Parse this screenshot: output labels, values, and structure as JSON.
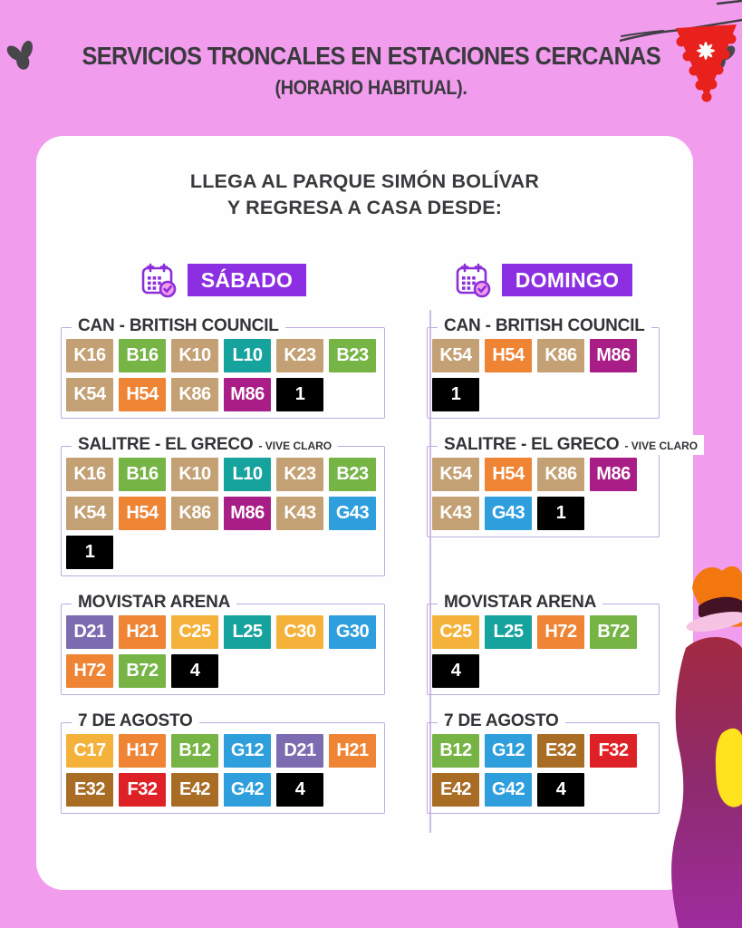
{
  "header": {
    "title": "SERVICIOS TRONCALES EN ESTACIONES CERCANAS",
    "subtitle": "(HORARIO HABITUAL)."
  },
  "card": {
    "heading_line1": "LLEGA AL PARQUE SIMÓN BOLÍVAR",
    "heading_line2": "Y REGRESA A CASA DESDE:"
  },
  "theme": {
    "bg": "#F29CEE",
    "card": "#FEFEFE",
    "ink": "#3A3A3E",
    "day": "#8C2EE1",
    "border": "#BEABE0",
    "divider": "#CDBCE8"
  },
  "route_colors": {
    "K": "#C3A175",
    "B": "#76B445",
    "L": "#16A39E",
    "H": "#EE8434",
    "M": "#A81E86",
    "G": "#2E9FDC",
    "C": "#F5B23B",
    "D": "#7C6BB0",
    "E": "#A86C25",
    "F": "#DE2127",
    "numeric": "#000000"
  },
  "icons": {
    "day_icon": "calendar-check-icon",
    "title_flank": "leaf-icon",
    "top_right": "papel-picado-pennant",
    "bottom_right": "person-with-hat-illustration"
  },
  "columns": [
    {
      "day": "SÁBADO",
      "sections": [
        {
          "title": "CAN - BRITISH COUNCIL",
          "suffix": "",
          "rows": [
            [
              "K16",
              "B16",
              "K10",
              "L10",
              "K23",
              "B23"
            ],
            [
              "K54",
              "H54",
              "K86",
              "M86",
              "1"
            ]
          ]
        },
        {
          "title": "SALITRE - EL GRECO",
          "suffix": "- VIVE CLARO",
          "rows": [
            [
              "K16",
              "B16",
              "K10",
              "L10",
              "K23",
              "B23"
            ],
            [
              "K54",
              "H54",
              "K86",
              "M86",
              "K43",
              "G43"
            ],
            [
              "1"
            ]
          ]
        },
        {
          "title": "MOVISTAR ARENA",
          "suffix": "",
          "rows": [
            [
              "D21",
              "H21",
              "C25",
              "L25",
              "C30",
              "G30"
            ],
            [
              "H72",
              "B72",
              "4"
            ]
          ]
        },
        {
          "title": "7 DE AGOSTO",
          "suffix": "",
          "rows": [
            [
              "C17",
              "H17",
              "B12",
              "G12",
              "D21",
              "H21"
            ],
            [
              "E32",
              "F32",
              "E42",
              "G42",
              "4"
            ]
          ]
        }
      ]
    },
    {
      "day": "DOMINGO",
      "sections": [
        {
          "title": "CAN - BRITISH COUNCIL",
          "suffix": "",
          "rows": [
            [
              "K54",
              "H54",
              "K86",
              "M86"
            ],
            [
              "1"
            ]
          ]
        },
        {
          "title": "SALITRE - EL GRECO",
          "suffix": "- VIVE CLARO",
          "rows": [
            [
              "K54",
              "H54",
              "K86",
              "M86"
            ],
            [
              "K43",
              "G43",
              "1"
            ]
          ]
        },
        {
          "title": "MOVISTAR ARENA",
          "suffix": "",
          "rows": [
            [
              "C25",
              "L25",
              "H72",
              "B72"
            ],
            [
              "4"
            ]
          ]
        },
        {
          "title": "7 DE AGOSTO",
          "suffix": "",
          "rows": [
            [
              "B12",
              "G12",
              "E32",
              "F32"
            ],
            [
              "E42",
              "G42",
              "4"
            ]
          ]
        }
      ]
    }
  ]
}
